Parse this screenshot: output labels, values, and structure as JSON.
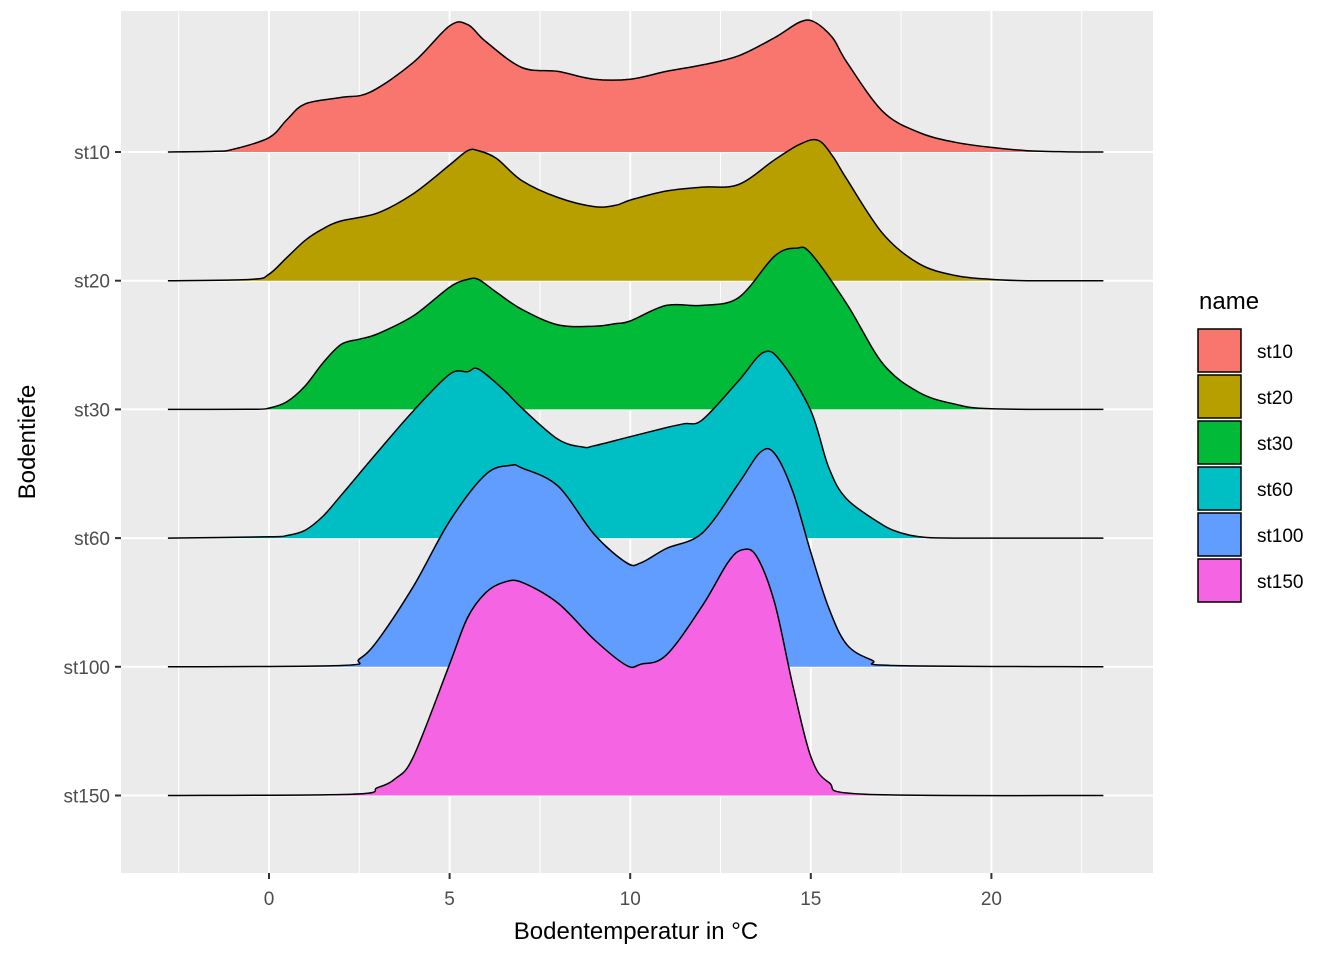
{
  "chart_data": {
    "type": "ridgeline",
    "title": "",
    "xlabel": "Bodentemperatur in °C",
    "ylabel": "Bodentiefe",
    "xlim": [
      -4.2,
      24.5
    ],
    "x_ticks": [
      0,
      5,
      10,
      15,
      20
    ],
    "x_tick_labels": [
      "0",
      "5",
      "10",
      "15",
      "20"
    ],
    "categories": [
      "st10",
      "st20",
      "st30",
      "st60",
      "st100",
      "st150"
    ],
    "grid": true,
    "legend": {
      "title": "name",
      "position": "right"
    },
    "series": [
      {
        "name": "st10",
        "color": "#F8766D",
        "x": [
          -2.8,
          -1.5,
          -1,
          0,
          0.5,
          1,
          2,
          2.8,
          4,
          5,
          5.5,
          6,
          7,
          8,
          9,
          10,
          11,
          12,
          13,
          14,
          14.7,
          15.1,
          15.6,
          16,
          17,
          18,
          19,
          20,
          21,
          22,
          23.1
        ],
        "y": [
          0,
          0.005,
          0.02,
          0.11,
          0.25,
          0.37,
          0.42,
          0.46,
          0.69,
          0.97,
          0.98,
          0.85,
          0.65,
          0.62,
          0.56,
          0.56,
          0.62,
          0.67,
          0.74,
          0.88,
          1.0,
          1.0,
          0.88,
          0.69,
          0.31,
          0.15,
          0.075,
          0.035,
          0.01,
          0.002,
          0
        ]
      },
      {
        "name": "st20",
        "color": "#B79F00",
        "x": [
          -2.8,
          -0.5,
          0,
          0.5,
          1,
          1.5,
          2,
          3,
          4,
          5,
          5.5,
          5.8,
          6.3,
          7,
          8,
          9,
          9.6,
          10,
          11,
          12,
          13,
          14,
          14.7,
          15.2,
          15.6,
          16,
          17,
          18,
          19,
          20,
          21,
          23.1
        ],
        "y": [
          0,
          0.01,
          0.05,
          0.18,
          0.31,
          0.4,
          0.46,
          0.52,
          0.67,
          0.89,
          1.0,
          1.0,
          0.94,
          0.77,
          0.64,
          0.57,
          0.58,
          0.62,
          0.69,
          0.72,
          0.74,
          0.93,
          1.05,
          1.08,
          0.96,
          0.78,
          0.36,
          0.13,
          0.04,
          0.01,
          0,
          0
        ]
      },
      {
        "name": "st30",
        "color": "#00BA38",
        "x": [
          -2.8,
          -0.5,
          0,
          0.5,
          1,
          1.5,
          2,
          2.5,
          3,
          4,
          5,
          5.5,
          5.8,
          6.3,
          7,
          8,
          9,
          9.6,
          10,
          11,
          12,
          13,
          14,
          14.6,
          15,
          16,
          17,
          18,
          19,
          20,
          23.1
        ],
        "y": [
          0,
          0.001,
          0.01,
          0.06,
          0.18,
          0.36,
          0.5,
          0.54,
          0.58,
          0.72,
          0.94,
          1.0,
          1.0,
          0.9,
          0.77,
          0.65,
          0.64,
          0.66,
          0.68,
          0.8,
          0.8,
          0.86,
          1.18,
          1.24,
          1.2,
          0.81,
          0.35,
          0.13,
          0.04,
          0.005,
          0
        ]
      },
      {
        "name": "st60",
        "color": "#00BFC4",
        "x": [
          -2.8,
          0,
          0.5,
          1,
          1.5,
          2,
          3,
          4,
          5,
          5.5,
          5.8,
          6.5,
          7,
          8,
          8.7,
          9,
          10,
          11,
          11.5,
          12,
          13,
          13.7,
          14.2,
          15,
          15.5,
          16,
          17,
          17.5,
          18,
          19,
          23.1
        ],
        "y": [
          0,
          0.01,
          0.02,
          0.06,
          0.17,
          0.33,
          0.66,
          0.98,
          1.26,
          1.28,
          1.3,
          1.14,
          1.0,
          0.76,
          0.7,
          0.71,
          0.78,
          0.85,
          0.88,
          0.91,
          1.21,
          1.43,
          1.35,
          0.98,
          0.54,
          0.3,
          0.1,
          0.04,
          0.01,
          0,
          0
        ]
      },
      {
        "name": "st100",
        "color": "#619CFF",
        "x": [
          -2.8,
          2,
          2.5,
          3,
          4,
          5,
          6,
          6.7,
          7,
          8,
          9,
          9.9,
          10.3,
          11,
          12,
          13,
          13.6,
          14,
          14.5,
          15,
          15.5,
          16,
          16.7,
          17.3,
          23.1
        ],
        "y": [
          0,
          0.01,
          0.06,
          0.2,
          0.62,
          1.12,
          1.48,
          1.55,
          1.53,
          1.39,
          1.02,
          0.8,
          0.8,
          0.91,
          1.03,
          1.41,
          1.65,
          1.64,
          1.35,
          0.88,
          0.45,
          0.17,
          0.05,
          0.01,
          0
        ]
      },
      {
        "name": "st150",
        "color": "#F564E3",
        "x": [
          -2.8,
          2.3,
          3,
          3.5,
          4,
          5,
          5.5,
          6,
          6.5,
          7,
          8,
          9,
          9.9,
          10.3,
          11,
          12,
          12.7,
          13.1,
          13.5,
          14,
          14.5,
          15,
          15.5,
          16.5,
          23.1
        ],
        "y": [
          0,
          0.01,
          0.06,
          0.13,
          0.3,
          1.01,
          1.37,
          1.56,
          1.64,
          1.64,
          1.48,
          1.2,
          1.0,
          1.01,
          1.08,
          1.46,
          1.79,
          1.89,
          1.84,
          1.48,
          0.85,
          0.3,
          0.1,
          0.01,
          0
        ]
      }
    ]
  }
}
